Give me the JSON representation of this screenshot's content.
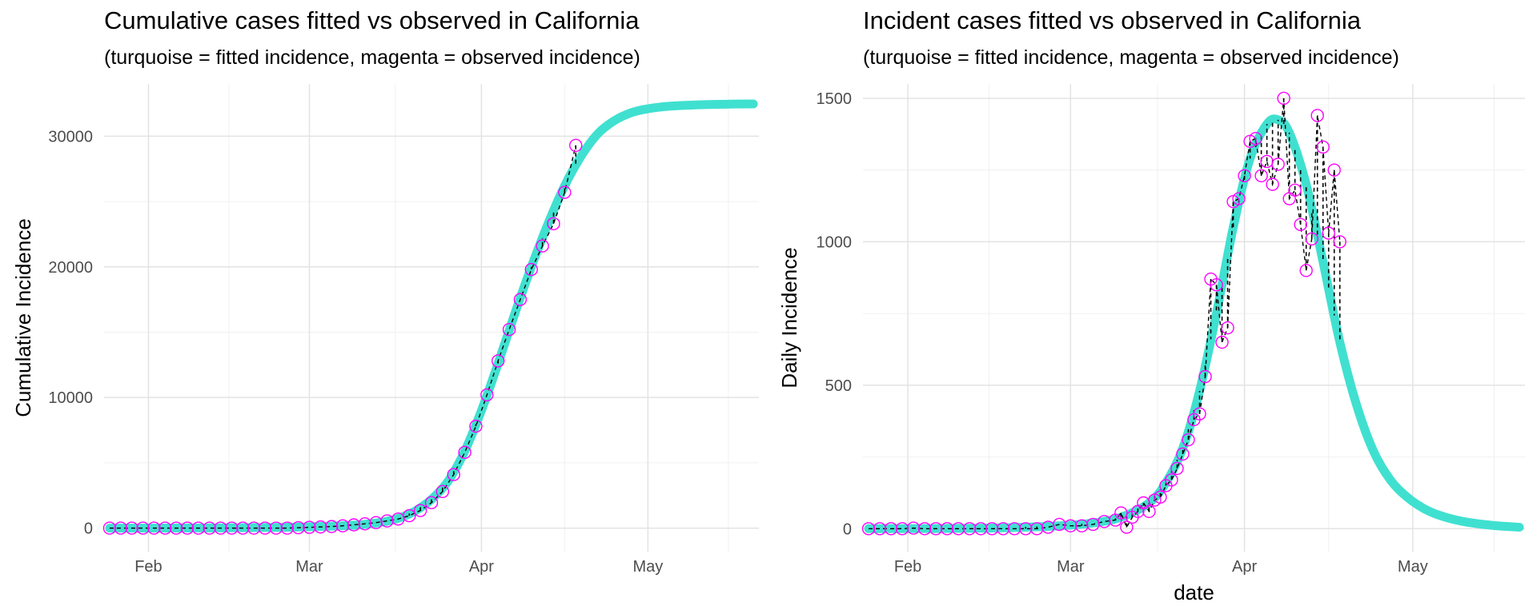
{
  "chart_data": [
    {
      "type": "line",
      "title": "Cumulative cases fitted vs observed in California",
      "subtitle": "(turquoise = fitted incidence, magenta = observed incidence)",
      "xlabel": "",
      "ylabel": "Cumulative Incidence",
      "x_is_date": true,
      "xlim": [
        "2020-01-24",
        "2020-05-21"
      ],
      "ylim": [
        -1800,
        34000
      ],
      "x_ticks": [
        {
          "x": "2020-02-01",
          "label": "Feb"
        },
        {
          "x": "2020-03-01",
          "label": "Mar"
        },
        {
          "x": "2020-04-01",
          "label": "Apr"
        },
        {
          "x": "2020-05-01",
          "label": "May"
        }
      ],
      "y_ticks": [
        0,
        10000,
        20000,
        30000
      ],
      "grid": true,
      "colors": {
        "fitted": "#40E0D0",
        "observed": "#FF00FF",
        "residual": "#000000"
      },
      "series": [
        {
          "style": "fitted",
          "x": [
            "2020-01-25",
            "2020-02-10",
            "2020-02-25",
            "2020-03-05",
            "2020-03-10",
            "2020-03-14",
            "2020-03-17",
            "2020-03-20",
            "2020-03-23",
            "2020-03-26",
            "2020-03-29",
            "2020-04-01",
            "2020-04-04",
            "2020-04-07",
            "2020-04-10",
            "2020-04-13",
            "2020-04-16",
            "2020-04-19",
            "2020-04-22",
            "2020-04-25",
            "2020-04-28",
            "2020-05-01",
            "2020-05-05",
            "2020-05-10",
            "2020-05-15",
            "2020-05-20"
          ],
          "y": [
            0,
            10,
            60,
            150,
            250,
            450,
            750,
            1300,
            2200,
            3600,
            5900,
            9000,
            12600,
            16400,
            20000,
            23300,
            26200,
            28500,
            30200,
            31200,
            31800,
            32100,
            32300,
            32400,
            32450,
            32470
          ]
        },
        {
          "style": "observed",
          "x": [
            "2020-01-25",
            "2020-01-27",
            "2020-01-29",
            "2020-01-31",
            "2020-02-02",
            "2020-02-04",
            "2020-02-06",
            "2020-02-08",
            "2020-02-10",
            "2020-02-12",
            "2020-02-14",
            "2020-02-16",
            "2020-02-18",
            "2020-02-20",
            "2020-02-22",
            "2020-02-24",
            "2020-02-26",
            "2020-02-28",
            "2020-03-01",
            "2020-03-03",
            "2020-03-05",
            "2020-03-07",
            "2020-03-09",
            "2020-03-11",
            "2020-03-13",
            "2020-03-15",
            "2020-03-17",
            "2020-03-19",
            "2020-03-21",
            "2020-03-23",
            "2020-03-25",
            "2020-03-27",
            "2020-03-29",
            "2020-03-31",
            "2020-04-02",
            "2020-04-04",
            "2020-04-06",
            "2020-04-08",
            "2020-04-10",
            "2020-04-12",
            "2020-04-14",
            "2020-04-16",
            "2020-04-18"
          ],
          "y": [
            0,
            0,
            0,
            0,
            0,
            0,
            0,
            0,
            0,
            0,
            0,
            0,
            0,
            0,
            0,
            0,
            0,
            30,
            60,
            90,
            120,
            180,
            250,
            330,
            420,
            550,
            700,
            950,
            1350,
            1950,
            2800,
            4100,
            5800,
            7800,
            10200,
            12800,
            15200,
            17500,
            19800,
            21600,
            23300,
            25700,
            29300
          ]
        }
      ]
    },
    {
      "type": "line",
      "title": "Incident cases fitted vs observed in California",
      "subtitle": "(turquoise = fitted incidence, magenta = observed incidence)",
      "xlabel": "date",
      "ylabel": "Daily Incidence",
      "x_is_date": true,
      "xlim": [
        "2020-01-24",
        "2020-05-21"
      ],
      "ylim": [
        -80,
        1550
      ],
      "x_ticks": [
        {
          "x": "2020-02-01",
          "label": "Feb"
        },
        {
          "x": "2020-03-01",
          "label": "Mar"
        },
        {
          "x": "2020-04-01",
          "label": "Apr"
        },
        {
          "x": "2020-05-01",
          "label": "May"
        }
      ],
      "y_ticks": [
        0,
        500,
        1000,
        1500
      ],
      "grid": true,
      "colors": {
        "fitted": "#40E0D0",
        "observed": "#FF00FF",
        "residual": "#000000"
      },
      "series": [
        {
          "style": "fitted",
          "x": [
            "2020-01-25",
            "2020-02-15",
            "2020-02-28",
            "2020-03-05",
            "2020-03-10",
            "2020-03-15",
            "2020-03-18",
            "2020-03-21",
            "2020-03-24",
            "2020-03-27",
            "2020-03-30",
            "2020-04-02",
            "2020-04-05",
            "2020-04-07",
            "2020-04-09",
            "2020-04-12",
            "2020-04-15",
            "2020-04-18",
            "2020-04-21",
            "2020-04-24",
            "2020-04-27",
            "2020-04-30",
            "2020-05-03",
            "2020-05-06",
            "2020-05-10",
            "2020-05-15",
            "2020-05-20"
          ],
          "y": [
            0,
            2,
            10,
            20,
            40,
            90,
            160,
            280,
            480,
            750,
            1050,
            1290,
            1410,
            1425,
            1380,
            1200,
            930,
            650,
            430,
            270,
            170,
            110,
            70,
            45,
            25,
            12,
            5
          ]
        },
        {
          "style": "observed",
          "x": [
            "2020-01-25",
            "2020-01-27",
            "2020-01-29",
            "2020-01-31",
            "2020-02-02",
            "2020-02-04",
            "2020-02-06",
            "2020-02-08",
            "2020-02-10",
            "2020-02-12",
            "2020-02-14",
            "2020-02-16",
            "2020-02-18",
            "2020-02-20",
            "2020-02-22",
            "2020-02-24",
            "2020-02-26",
            "2020-02-28",
            "2020-03-01",
            "2020-03-03",
            "2020-03-05",
            "2020-03-07",
            "2020-03-09",
            "2020-03-10",
            "2020-03-11",
            "2020-03-12",
            "2020-03-13",
            "2020-03-14",
            "2020-03-15",
            "2020-03-16",
            "2020-03-17",
            "2020-03-18",
            "2020-03-19",
            "2020-03-20",
            "2020-03-21",
            "2020-03-22",
            "2020-03-23",
            "2020-03-24",
            "2020-03-25",
            "2020-03-26",
            "2020-03-27",
            "2020-03-28",
            "2020-03-29",
            "2020-03-30",
            "2020-03-31",
            "2020-04-01",
            "2020-04-02",
            "2020-04-03",
            "2020-04-04",
            "2020-04-05",
            "2020-04-06",
            "2020-04-07",
            "2020-04-08",
            "2020-04-09",
            "2020-04-10",
            "2020-04-11",
            "2020-04-12",
            "2020-04-13",
            "2020-04-14",
            "2020-04-15",
            "2020-04-16",
            "2020-04-17",
            "2020-04-18"
          ],
          "y": [
            0,
            0,
            0,
            0,
            2,
            0,
            0,
            0,
            0,
            0,
            0,
            0,
            0,
            0,
            0,
            0,
            5,
            15,
            10,
            10,
            15,
            25,
            30,
            55,
            5,
            40,
            60,
            90,
            60,
            100,
            110,
            150,
            170,
            210,
            260,
            310,
            380,
            400,
            530,
            870,
            850,
            650,
            700,
            1140,
            1150,
            1230,
            1350,
            1360,
            1230,
            1280,
            1200,
            1270,
            1500,
            1150,
            1180,
            1060,
            900,
            1010,
            1440,
            1330,
            1030,
            1250,
            1000
          ]
        }
      ]
    }
  ]
}
